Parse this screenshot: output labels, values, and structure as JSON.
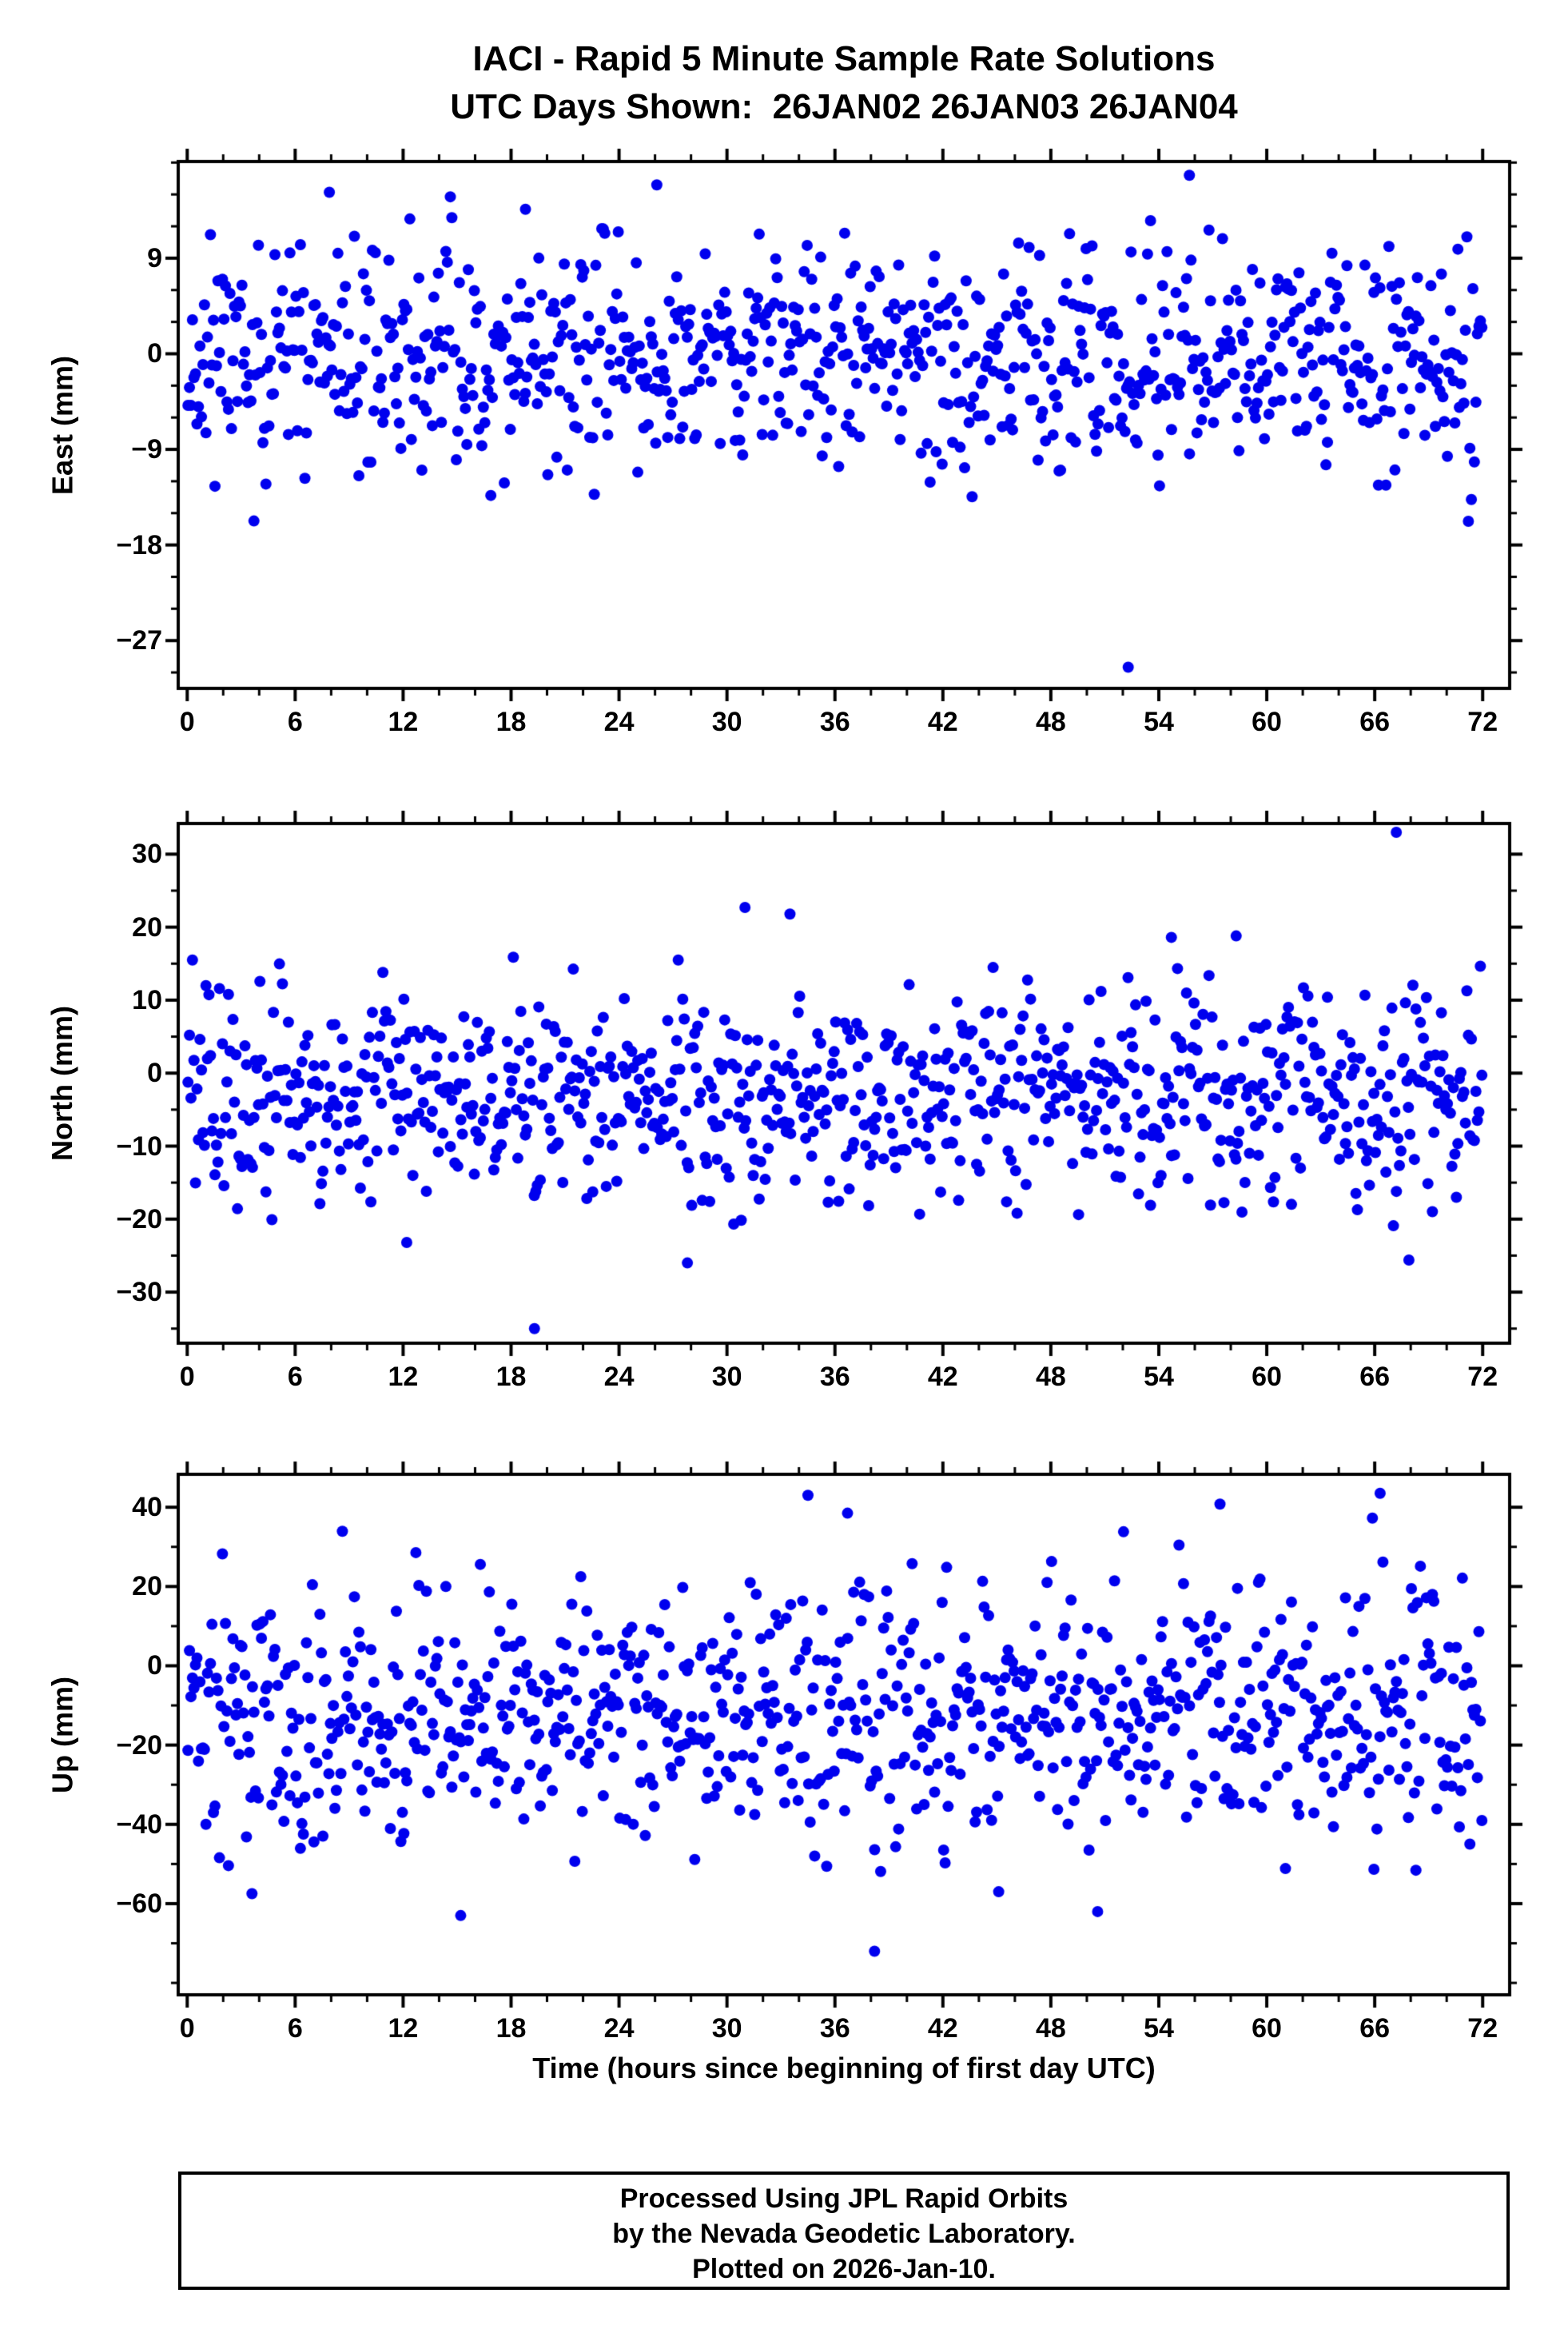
{
  "title": {
    "line1": "IACI - Rapid 5 Minute Sample Rate Solutions",
    "line2": "UTC Days Shown:  26JAN02 26JAN03 26JAN04"
  },
  "footer": {
    "line1": "Processed Using JPL Rapid Orbits",
    "line2": "by the Nevada Geodetic Laboratory.",
    "line3": "Plotted on 2026-Jan-10."
  },
  "colors": {
    "dot": "#0000EE",
    "frame": "#000000",
    "background": "#FFFFFF"
  },
  "chart_data": [
    {
      "type": "scatter",
      "name": "east",
      "ylabel": "East (mm)",
      "xlabel": "Time (hours since beginning of first day UTC)",
      "xlim": [
        -0.5,
        73.5
      ],
      "ylim": [
        -31.5,
        18.1
      ],
      "xticks": [
        0,
        6,
        12,
        18,
        24,
        30,
        36,
        42,
        48,
        54,
        60,
        66,
        72
      ],
      "xtick_labels": [
        "0",
        "6",
        "12",
        "18",
        "24",
        "30",
        "36",
        "42",
        "48",
        "54",
        "60",
        "66",
        "72"
      ],
      "yticks": [
        9,
        0,
        -9,
        -18,
        -27
      ],
      "ytick_labels": [
        "9",
        "0",
        "−9",
        "−18",
        "−27"
      ],
      "x_minor_step": 2,
      "y_minor_step": 3,
      "points_model": {
        "n": 864,
        "x_start": 0.042,
        "x_step": 0.08333,
        "mean": -0.3,
        "std": 5.2,
        "clip": [
          -16.5,
          15.0
        ],
        "tail_prob": 0.04,
        "tail_mult": 1.8,
        "seed": 11
      },
      "outliers": [
        [
          52.3,
          -29.5
        ],
        [
          55.7,
          16.8
        ],
        [
          26.1,
          15.9
        ],
        [
          7.9,
          15.2
        ],
        [
          18.8,
          13.6
        ]
      ]
    },
    {
      "type": "scatter",
      "name": "north",
      "ylabel": "North (mm)",
      "xlabel": "Time (hours since beginning of first day UTC)",
      "xlim": [
        -0.5,
        73.5
      ],
      "ylim": [
        -37.0,
        34.2
      ],
      "xticks": [
        0,
        6,
        12,
        18,
        24,
        30,
        36,
        42,
        48,
        54,
        60,
        66,
        72
      ],
      "xtick_labels": [
        "0",
        "6",
        "12",
        "18",
        "24",
        "30",
        "36",
        "42",
        "48",
        "54",
        "60",
        "66",
        "72"
      ],
      "yticks": [
        30,
        20,
        10,
        0,
        -10,
        -20,
        -30
      ],
      "ytick_labels": [
        "30",
        "20",
        "10",
        "0",
        "−10",
        "−20",
        "−30"
      ],
      "x_minor_step": 2,
      "y_minor_step": 5,
      "points_model": {
        "n": 864,
        "x_start": 0.042,
        "x_step": 0.08333,
        "mean": -3.2,
        "std": 7.4,
        "clip": [
          -21.5,
          16.0
        ],
        "tail_prob": 0.04,
        "tail_mult": 1.8,
        "seed": 22
      },
      "outliers": [
        [
          19.3,
          -35.0
        ],
        [
          67.2,
          33.0
        ],
        [
          27.8,
          -26.0
        ],
        [
          31.0,
          22.7
        ],
        [
          33.5,
          21.8
        ],
        [
          58.3,
          18.8
        ],
        [
          54.7,
          18.6
        ],
        [
          12.2,
          -23.2
        ],
        [
          67.9,
          -25.6
        ]
      ]
    },
    {
      "type": "scatter",
      "name": "up",
      "ylabel": "Up (mm)",
      "xlabel": "Time (hours since beginning of first day UTC)",
      "xlim": [
        -0.5,
        73.5
      ],
      "ylim": [
        -83.0,
        48.3
      ],
      "xticks": [
        0,
        6,
        12,
        18,
        24,
        30,
        36,
        42,
        48,
        54,
        60,
        66,
        72
      ],
      "xtick_labels": [
        "0",
        "6",
        "12",
        "18",
        "24",
        "30",
        "36",
        "42",
        "48",
        "54",
        "60",
        "66",
        "72"
      ],
      "yticks": [
        40,
        20,
        0,
        -20,
        -40,
        -60
      ],
      "ytick_labels": [
        "40",
        "20",
        "0",
        "−20",
        "−40",
        "−60"
      ],
      "x_minor_step": 2,
      "y_minor_step": 10,
      "points_model": {
        "n": 864,
        "x_start": 0.042,
        "x_step": 0.08333,
        "mean": -12.0,
        "std": 16.5,
        "clip": [
          -52.0,
          40.0
        ],
        "tail_prob": 0.04,
        "tail_mult": 1.8,
        "seed": 33
      },
      "outliers": [
        [
          38.2,
          -72.0
        ],
        [
          15.2,
          -63.0
        ],
        [
          50.6,
          -62.0
        ],
        [
          34.5,
          43.0
        ],
        [
          66.3,
          43.5
        ],
        [
          36.7,
          38.5
        ],
        [
          57.4,
          40.8
        ],
        [
          3.6,
          -57.5
        ],
        [
          45.1,
          -57.0
        ]
      ]
    }
  ]
}
